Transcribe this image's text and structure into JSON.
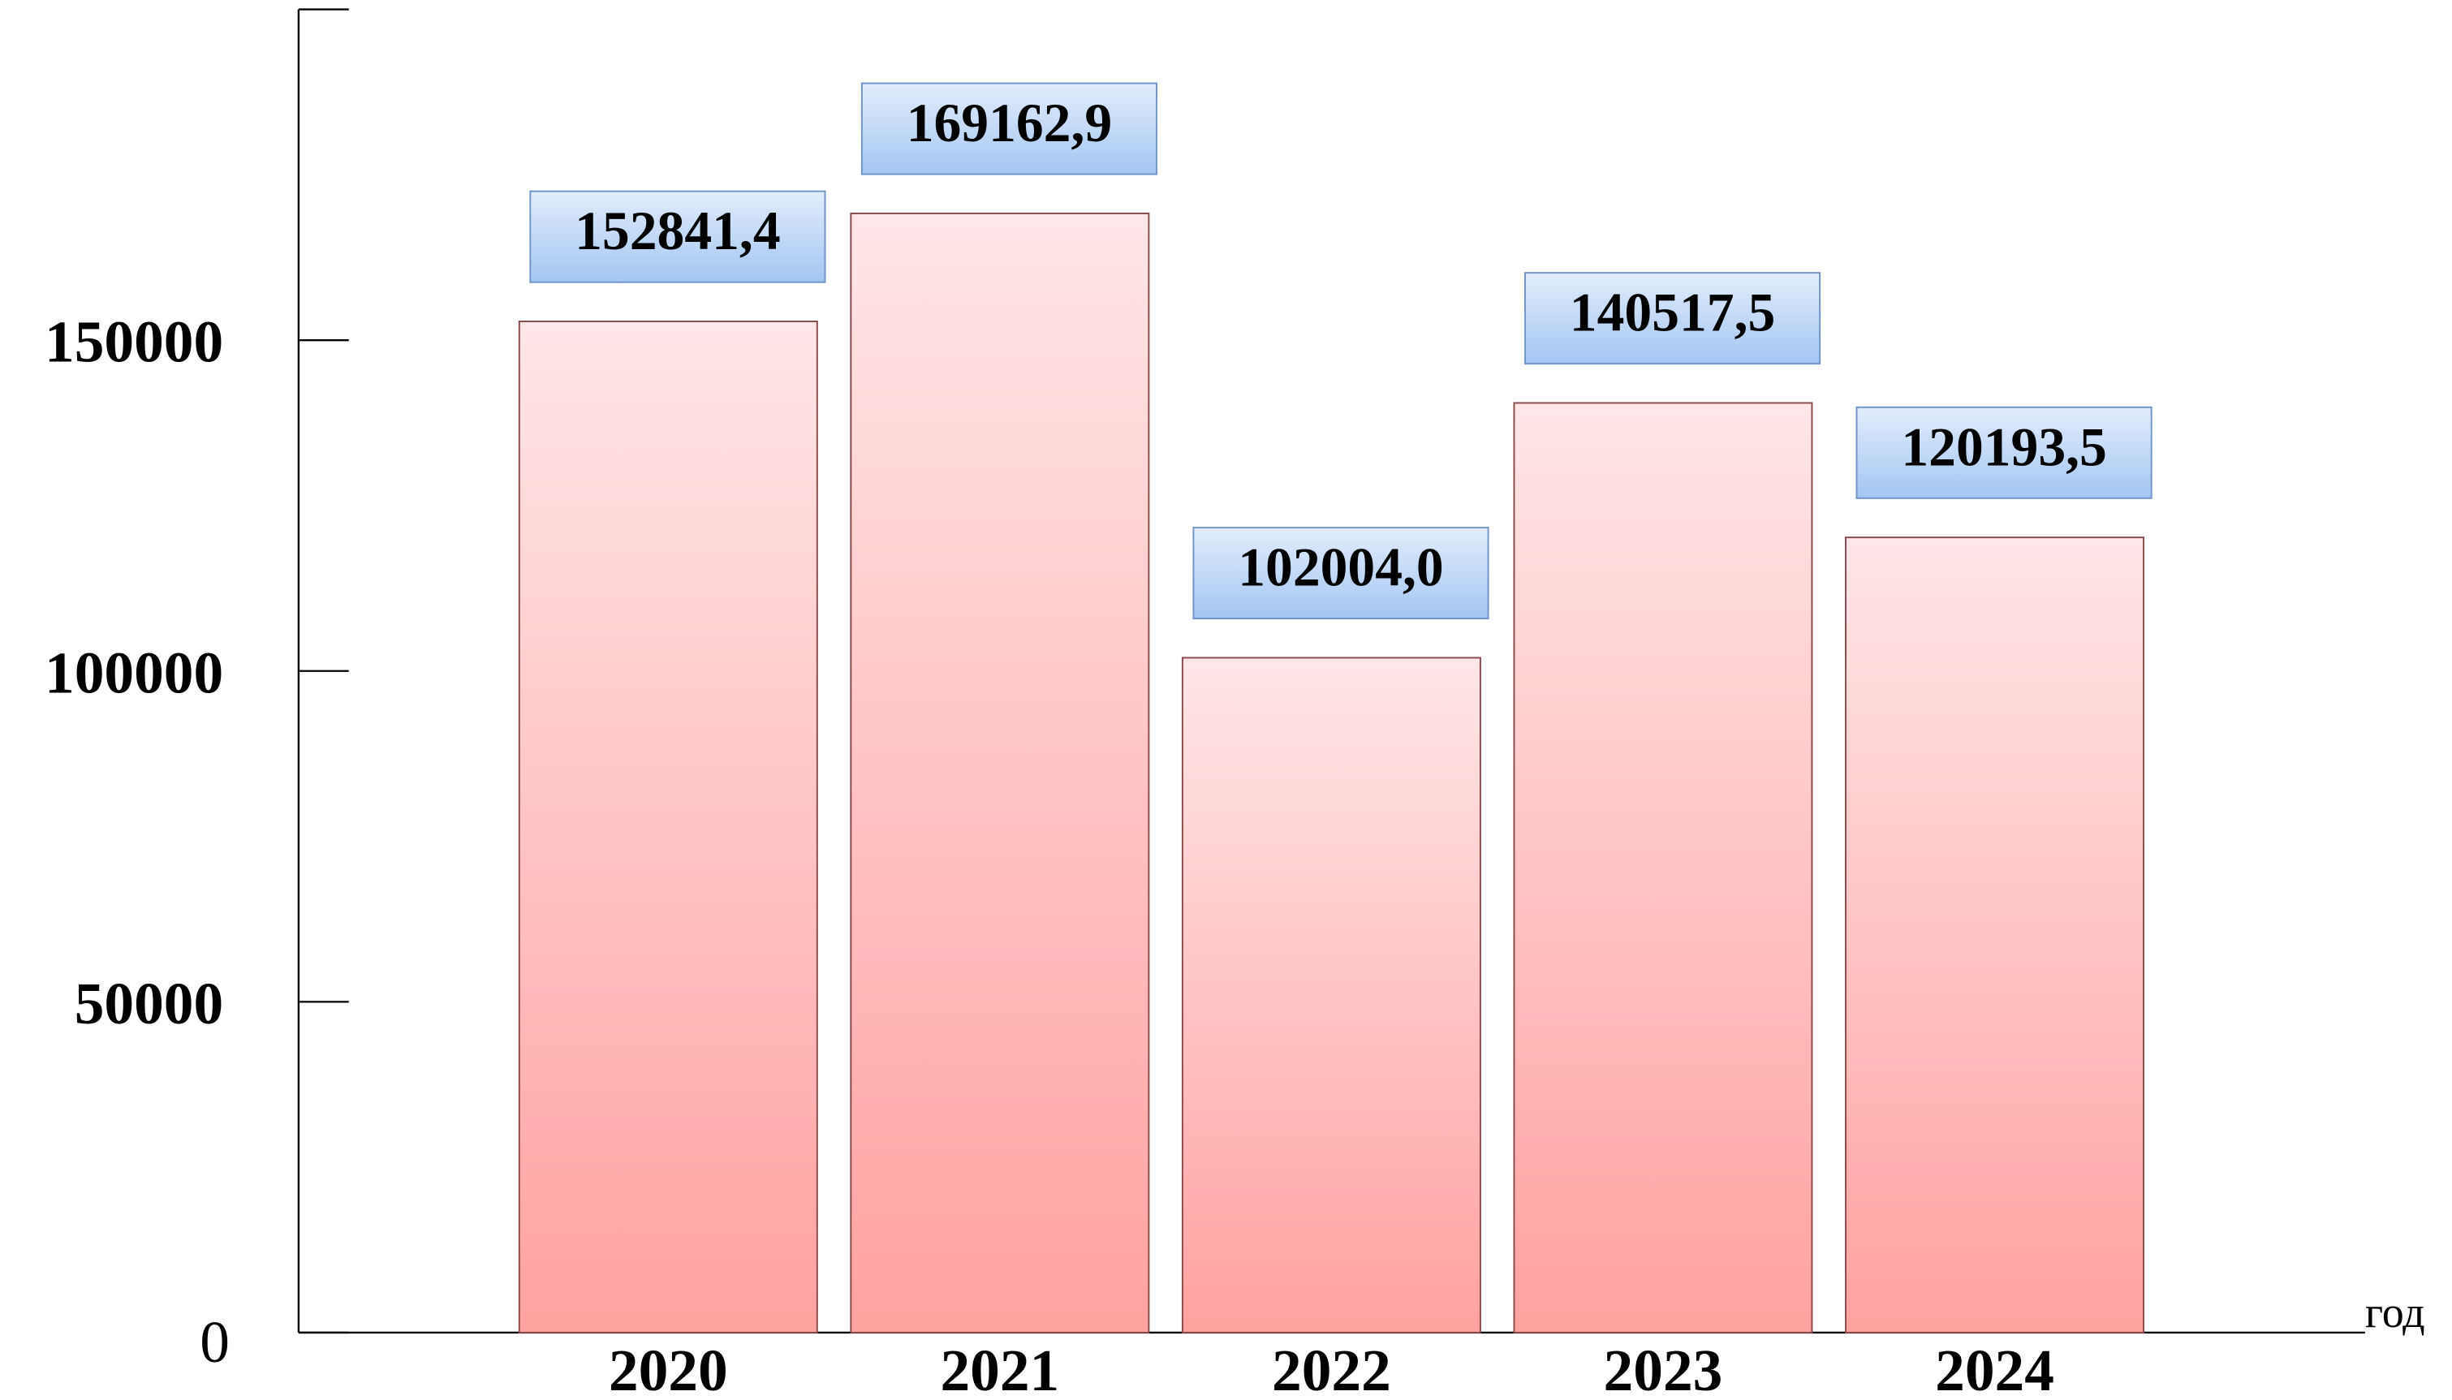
{
  "chart_data": {
    "type": "bar",
    "x_label": "год",
    "categories": [
      "2020",
      "2021",
      "2022",
      "2023",
      "2024"
    ],
    "values": [
      152841.4,
      169162.9,
      102004.0,
      140517.5,
      120193.5
    ],
    "value_labels": [
      "152841,4",
      "169162,9",
      "102004,0",
      "140517,5",
      "120193,5"
    ],
    "color": "#ffb0b0",
    "ylim": [
      0,
      200000
    ],
    "yticks": [
      0,
      50000,
      100000,
      150000
    ],
    "grid": false
  }
}
